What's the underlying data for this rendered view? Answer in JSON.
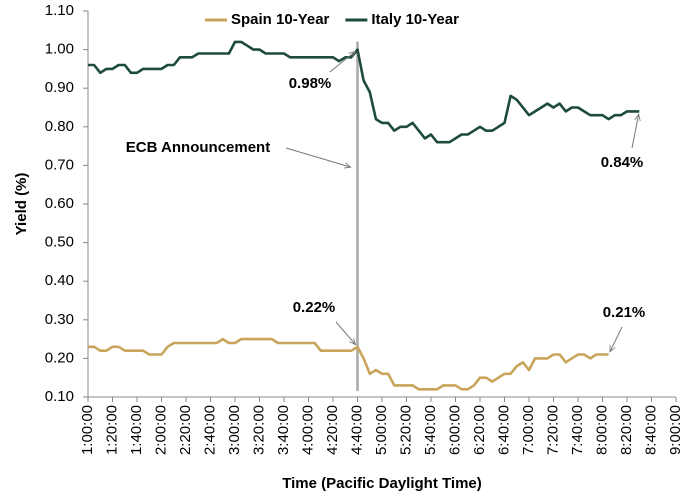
{
  "chart_data": {
    "type": "line",
    "x_label": "Time (Pacific Daylight Time)",
    "y_label": "Yield (%)",
    "x": [
      "1:00:00",
      "1:05:00",
      "1:10:00",
      "1:15:00",
      "1:20:00",
      "1:25:00",
      "1:30:00",
      "1:35:00",
      "1:40:00",
      "1:45:00",
      "1:50:00",
      "1:55:00",
      "2:00:00",
      "2:05:00",
      "2:10:00",
      "2:15:00",
      "2:20:00",
      "2:25:00",
      "2:30:00",
      "2:35:00",
      "2:40:00",
      "2:45:00",
      "2:50:00",
      "2:55:00",
      "3:00:00",
      "3:05:00",
      "3:10:00",
      "3:15:00",
      "3:20:00",
      "3:25:00",
      "3:30:00",
      "3:35:00",
      "3:40:00",
      "3:45:00",
      "3:50:00",
      "3:55:00",
      "4:00:00",
      "4:05:00",
      "4:10:00",
      "4:15:00",
      "4:20:00",
      "4:25:00",
      "4:30:00",
      "4:35:00",
      "4:40:00",
      "4:45:00",
      "4:50:00",
      "4:55:00",
      "5:00:00",
      "5:05:00",
      "5:10:00",
      "5:15:00",
      "5:20:00",
      "5:25:00",
      "5:30:00",
      "5:35:00",
      "5:40:00",
      "5:45:00",
      "5:50:00",
      "5:55:00",
      "6:00:00",
      "6:05:00",
      "6:10:00",
      "6:15:00",
      "6:20:00",
      "6:25:00",
      "6:30:00",
      "6:35:00",
      "6:40:00",
      "6:45:00",
      "6:50:00",
      "6:55:00",
      "7:00:00",
      "7:05:00",
      "7:10:00",
      "7:15:00",
      "7:20:00",
      "7:25:00",
      "7:30:00",
      "7:35:00",
      "7:40:00",
      "7:45:00",
      "7:50:00",
      "7:55:00",
      "8:00:00",
      "8:05:00",
      "8:10:00",
      "8:15:00",
      "8:20:00",
      "8:25:00",
      "8:30:00"
    ],
    "series": [
      {
        "name": "Spain 10-Year",
        "color": "#c9a55c",
        "values": [
          0.23,
          0.23,
          0.22,
          0.22,
          0.23,
          0.23,
          0.22,
          0.22,
          0.22,
          0.22,
          0.21,
          0.21,
          0.21,
          0.23,
          0.24,
          0.24,
          0.24,
          0.24,
          0.24,
          0.24,
          0.24,
          0.24,
          0.25,
          0.24,
          0.24,
          0.25,
          0.25,
          0.25,
          0.25,
          0.25,
          0.25,
          0.24,
          0.24,
          0.24,
          0.24,
          0.24,
          0.24,
          0.24,
          0.22,
          0.22,
          0.22,
          0.22,
          0.22,
          0.22,
          0.23,
          0.2,
          0.16,
          0.17,
          0.16,
          0.16,
          0.13,
          0.13,
          0.13,
          0.13,
          0.12,
          0.12,
          0.12,
          0.12,
          0.13,
          0.13,
          0.13,
          0.12,
          0.12,
          0.13,
          0.15,
          0.15,
          0.14,
          0.15,
          0.16,
          0.16,
          0.18,
          0.19,
          0.17,
          0.2,
          0.2,
          0.2,
          0.21,
          0.21,
          0.19,
          0.2,
          0.21,
          0.21,
          0.2,
          0.21,
          0.21,
          0.21,
          null,
          null,
          null,
          null,
          null
        ]
      },
      {
        "name": "Italy 10-Year",
        "color": "#1d4c38",
        "values": [
          0.96,
          0.96,
          0.94,
          0.95,
          0.95,
          0.96,
          0.96,
          0.94,
          0.94,
          0.95,
          0.95,
          0.95,
          0.95,
          0.96,
          0.96,
          0.98,
          0.98,
          0.98,
          0.99,
          0.99,
          0.99,
          0.99,
          0.99,
          0.99,
          1.02,
          1.02,
          1.01,
          1.0,
          1.0,
          0.99,
          0.99,
          0.99,
          0.99,
          0.98,
          0.98,
          0.98,
          0.98,
          0.98,
          0.98,
          0.98,
          0.98,
          0.97,
          0.98,
          0.98,
          1.0,
          0.92,
          0.89,
          0.82,
          0.81,
          0.81,
          0.79,
          0.8,
          0.8,
          0.81,
          0.79,
          0.77,
          0.78,
          0.76,
          0.76,
          0.76,
          0.77,
          0.78,
          0.78,
          0.79,
          0.8,
          0.79,
          0.79,
          0.8,
          0.81,
          0.88,
          0.87,
          0.85,
          0.83,
          0.84,
          0.85,
          0.86,
          0.85,
          0.86,
          0.84,
          0.85,
          0.85,
          0.84,
          0.83,
          0.83,
          0.83,
          0.82,
          0.83,
          0.83,
          0.84,
          0.84,
          0.84
        ]
      }
    ],
    "xlim": [
      "1:00:00",
      "9:00:00"
    ],
    "xticks": [
      "1:00:00",
      "1:20:00",
      "1:40:00",
      "2:00:00",
      "2:20:00",
      "2:40:00",
      "3:00:00",
      "3:20:00",
      "3:40:00",
      "4:00:00",
      "4:20:00",
      "4:40:00",
      "5:00:00",
      "5:20:00",
      "5:40:00",
      "6:00:00",
      "6:20:00",
      "6:40:00",
      "7:00:00",
      "7:20:00",
      "7:40:00",
      "8:00:00",
      "8:20:00",
      "8:40:00",
      "9:00:00"
    ],
    "ylim": [
      0.1,
      1.1
    ],
    "yticks": [
      {
        "value": 0.1,
        "label": "0.10"
      },
      {
        "value": 0.2,
        "label": "0.20"
      },
      {
        "value": 0.3,
        "label": "0.30"
      },
      {
        "value": 0.4,
        "label": "0.40"
      },
      {
        "value": 0.5,
        "label": "0.50"
      },
      {
        "value": 0.6,
        "label": "0.60"
      },
      {
        "value": 0.7,
        "label": "0.70"
      },
      {
        "value": 0.8,
        "label": "0.80"
      },
      {
        "value": 0.9,
        "label": "0.90"
      },
      {
        "value": 1.0,
        "label": "1.00"
      },
      {
        "value": 1.1,
        "label": "1.10"
      }
    ],
    "grid": false,
    "legend": "top",
    "annotations": [
      {
        "text": "0.98%"
      },
      {
        "text": "ECB Announcement"
      },
      {
        "text": "0.84%"
      },
      {
        "text": "0.22%"
      },
      {
        "text": "0.21%"
      }
    ]
  }
}
